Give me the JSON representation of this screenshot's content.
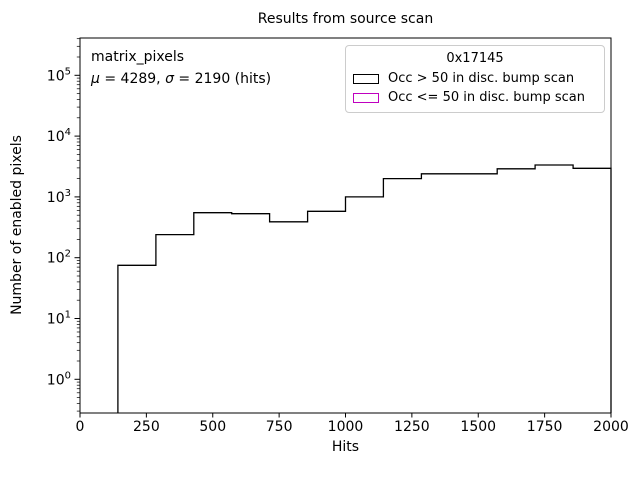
{
  "chart_data": {
    "type": "histogram",
    "title": "Results from source scan",
    "xlabel": "Hits",
    "ylabel": "Number of enabled pixels",
    "x_ticks": [
      0,
      250,
      500,
      750,
      1000,
      1250,
      1500,
      1750,
      2000
    ],
    "xlim": [
      0,
      2000
    ],
    "y_scale": "log",
    "y_tick_exponents": [
      0,
      1,
      2,
      3,
      4,
      5
    ],
    "grid": false,
    "legend_position": "upper right",
    "bin_edges": [
      0,
      142.9,
      285.7,
      428.6,
      571.4,
      714.3,
      857.1,
      1000,
      1142.9,
      1285.7,
      1428.6,
      1571.4,
      1714.3,
      1857.1,
      2000
    ],
    "series": [
      {
        "name": "Occ > 50 in disc. bump scan",
        "color": "#000000",
        "counts": [
          0,
          75,
          240,
          550,
          530,
          390,
          580,
          1000,
          2000,
          2400,
          2400,
          2900,
          3350,
          2950
        ]
      },
      {
        "name": "Occ <= 50 in disc. bump scan",
        "color": "#bf00bf",
        "counts": [
          0,
          0,
          0,
          0,
          0,
          0,
          0,
          0,
          0,
          0,
          0,
          0,
          0,
          0
        ]
      }
    ],
    "legend": {
      "title": "0x17145",
      "entries": [
        {
          "label": "Occ > 50 in disc. bump scan",
          "color": "#000000"
        },
        {
          "label": "Occ <= 50 in disc. bump scan",
          "color": "#bf00bf"
        }
      ]
    },
    "annotation": {
      "name": "matrix_pixels",
      "mu_symbol": "μ",
      "mu_text": " = 4289, ",
      "sigma_symbol": "σ",
      "sigma_text": " = 2190 (hits)",
      "mu_value": 4289,
      "sigma_value": 2190
    }
  }
}
